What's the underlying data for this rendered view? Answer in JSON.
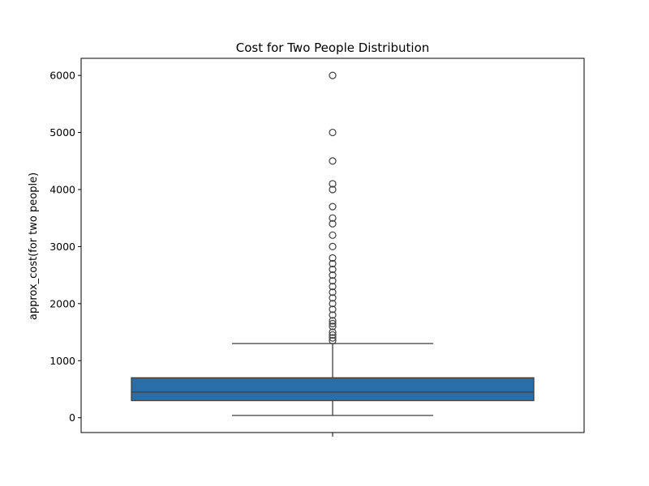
{
  "chart_data": {
    "type": "box",
    "title": "Cost for Two People Distribution",
    "xlabel": "",
    "ylabel": "approx_cost(for two people)",
    "ylim": [
      -260,
      6300
    ],
    "yticks": [
      0,
      1000,
      2000,
      3000,
      4000,
      5000,
      6000
    ],
    "grid": false,
    "box": {
      "whisker_low": 40,
      "q1": 300,
      "median": 450,
      "q3": 700,
      "whisker_high": 1300,
      "fill_color": "#2a6ea7",
      "line_color": "#3f3f3f"
    },
    "outliers": [
      1350,
      1400,
      1450,
      1500,
      1600,
      1650,
      1700,
      1800,
      1900,
      2000,
      2100,
      2200,
      2300,
      2400,
      2500,
      2600,
      2700,
      2800,
      3000,
      3200,
      3400,
      3500,
      3700,
      4000,
      4100,
      4500,
      5000,
      6000
    ]
  }
}
